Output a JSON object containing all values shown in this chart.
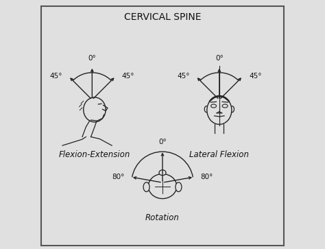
{
  "title": "CERVICAL SPINE",
  "title_fontsize": 10,
  "background_color": "#e0e0e0",
  "border_color": "#555555",
  "line_color": "#222222",
  "text_color": "#111111",
  "flexion_label": "Flexion-Extension",
  "lateral_label": "Lateral Flexion",
  "rotation_label": "Rotation",
  "angle_labels": {
    "flexion": {
      "top": "0°",
      "left": "45°",
      "right": "45°"
    },
    "lateral": {
      "top": "0°",
      "left": "45°",
      "right": "45°"
    },
    "rotation": {
      "top": "0°",
      "left": "80°",
      "right": "80°"
    }
  },
  "font_size": 7.5,
  "label_fontsize": 8.5
}
